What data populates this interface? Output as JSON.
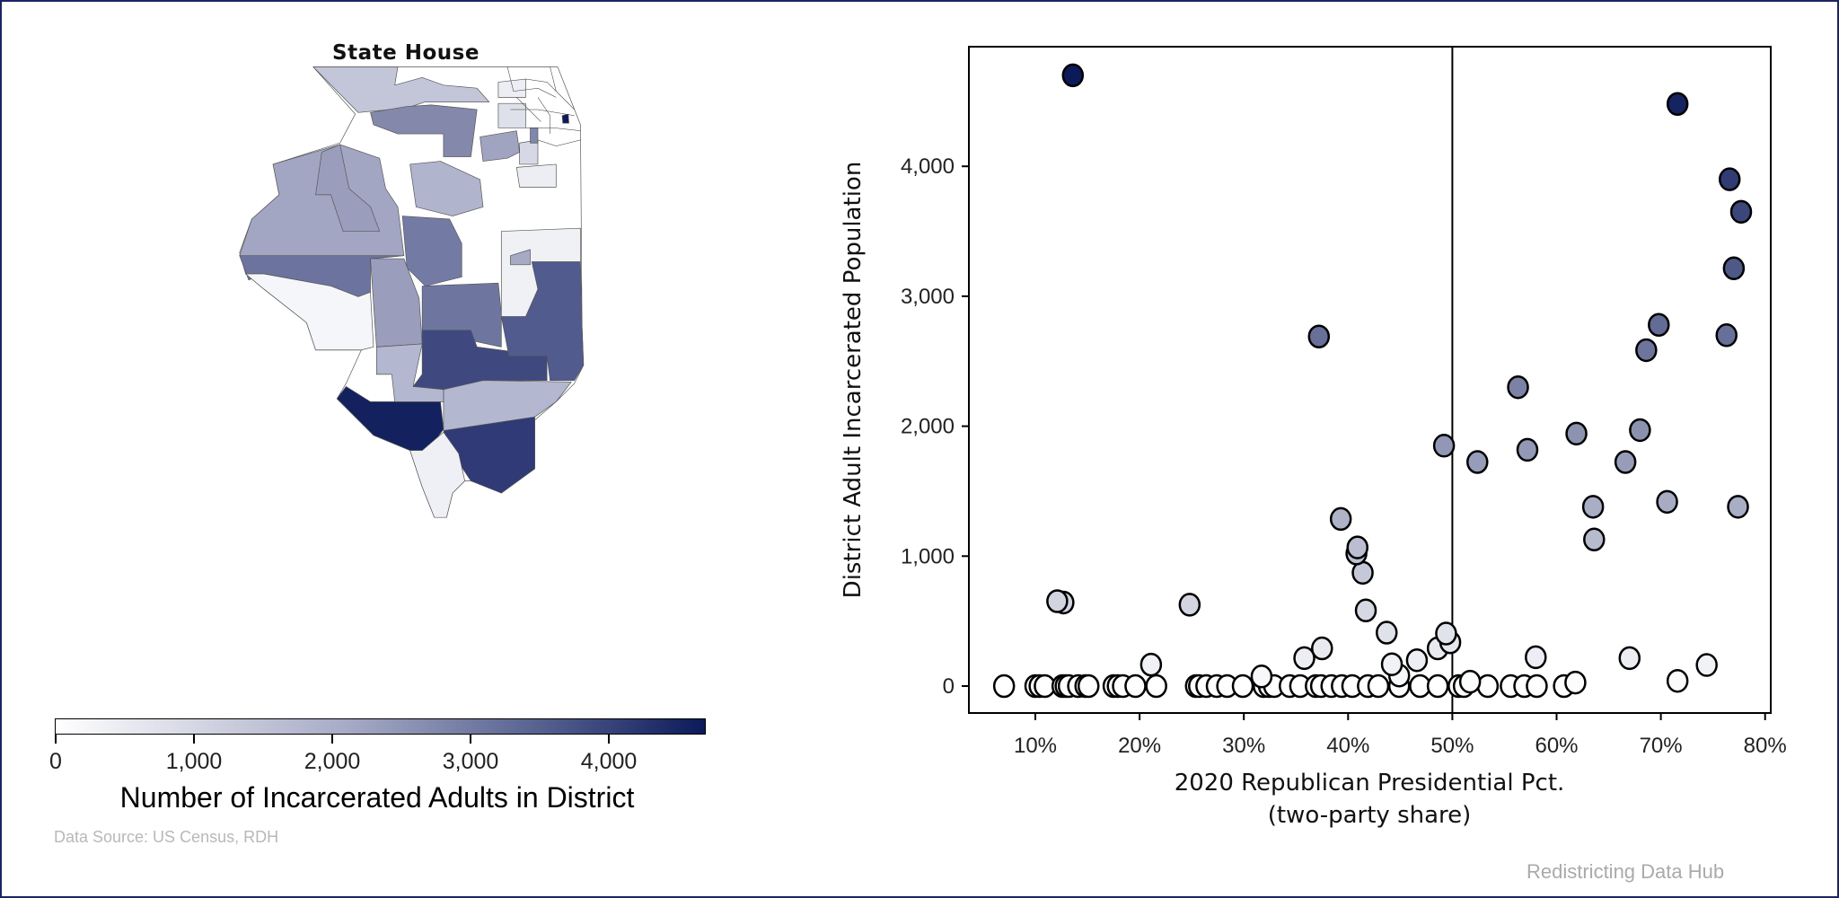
{
  "map": {
    "title": "State House",
    "colorbar": {
      "label": "Number of Incarcerated Adults in District",
      "ticks": [
        "0",
        "1,000",
        "2,000",
        "3,000",
        "4,000"
      ],
      "range": [
        0,
        4700
      ],
      "colors": [
        "#ffffff",
        "#0c1a5a"
      ]
    },
    "source": "Data Source: US Census, RDH"
  },
  "credit": "Redistricting Data Hub",
  "chart_data": {
    "type": "scatter",
    "xlabel": "2020 Republican Presidential Pct.",
    "xlabel2": "(two-party share)",
    "ylabel": "District Adult Incarcerated Population",
    "xlim": [
      5,
      81
    ],
    "ylim": [
      -200,
      4800
    ],
    "xticks": [
      "10%",
      "20%",
      "30%",
      "40%",
      "50%",
      "60%",
      "70%",
      "80%"
    ],
    "yticks": [
      "0",
      "1,000",
      "2,000",
      "3,000",
      "4,000"
    ],
    "vline_x": 50,
    "grid": false,
    "color_by": "y",
    "points": [
      [
        13.6,
        4700
      ],
      [
        71.6,
        4480
      ],
      [
        76.6,
        3900
      ],
      [
        77.7,
        3650
      ],
      [
        77.0,
        3215
      ],
      [
        69.8,
        2780
      ],
      [
        76.3,
        2700
      ],
      [
        68.6,
        2585
      ],
      [
        37.2,
        2690
      ],
      [
        56.3,
        2300
      ],
      [
        61.9,
        1943
      ],
      [
        68.0,
        1970
      ],
      [
        49.2,
        1850
      ],
      [
        52.4,
        1724
      ],
      [
        57.2,
        1818
      ],
      [
        66.6,
        1724
      ],
      [
        63.5,
        1380
      ],
      [
        70.6,
        1418
      ],
      [
        77.4,
        1380
      ],
      [
        63.6,
        1128
      ],
      [
        39.3,
        1286
      ],
      [
        40.9,
        1067
      ],
      [
        40.8,
        1020
      ],
      [
        41.4,
        872
      ],
      [
        41.7,
        582
      ],
      [
        12.1,
        653
      ],
      [
        12.7,
        643
      ],
      [
        24.8,
        626
      ],
      [
        43.7,
        411
      ],
      [
        49.4,
        404
      ],
      [
        49.8,
        337
      ],
      [
        48.6,
        290
      ],
      [
        46.6,
        199
      ],
      [
        37.5,
        290
      ],
      [
        35.8,
        215
      ],
      [
        44.2,
        168
      ],
      [
        58.0,
        222
      ],
      [
        67.0,
        215
      ],
      [
        74.4,
        162
      ],
      [
        21.1,
        165
      ],
      [
        71.6,
        40
      ],
      [
        31.7,
        74
      ],
      [
        61.8,
        27
      ],
      [
        51.7,
        34
      ],
      [
        44.9,
        81
      ],
      [
        7.0,
        0
      ],
      [
        10.0,
        0
      ],
      [
        10.4,
        0
      ],
      [
        10.9,
        0
      ],
      [
        12.6,
        0
      ],
      [
        12.9,
        0
      ],
      [
        13.2,
        0
      ],
      [
        14.1,
        0
      ],
      [
        14.8,
        0
      ],
      [
        15.1,
        0
      ],
      [
        17.5,
        0
      ],
      [
        17.9,
        0
      ],
      [
        18.4,
        0
      ],
      [
        19.6,
        0
      ],
      [
        21.6,
        0
      ],
      [
        25.4,
        0
      ],
      [
        25.7,
        0
      ],
      [
        26.4,
        0
      ],
      [
        27.4,
        0
      ],
      [
        28.4,
        0
      ],
      [
        29.9,
        0
      ],
      [
        31.9,
        0
      ],
      [
        32.4,
        0
      ],
      [
        32.9,
        0
      ],
      [
        34.4,
        0
      ],
      [
        35.4,
        0
      ],
      [
        36.9,
        0
      ],
      [
        37.4,
        0
      ],
      [
        38.4,
        0
      ],
      [
        39.4,
        0
      ],
      [
        40.4,
        0
      ],
      [
        41.9,
        0
      ],
      [
        42.9,
        0
      ],
      [
        44.9,
        0
      ],
      [
        46.9,
        0
      ],
      [
        48.6,
        0
      ],
      [
        50.6,
        0
      ],
      [
        51.1,
        0
      ],
      [
        53.4,
        0
      ],
      [
        55.6,
        0
      ],
      [
        56.9,
        0
      ],
      [
        58.1,
        0
      ],
      [
        60.7,
        0
      ]
    ]
  }
}
